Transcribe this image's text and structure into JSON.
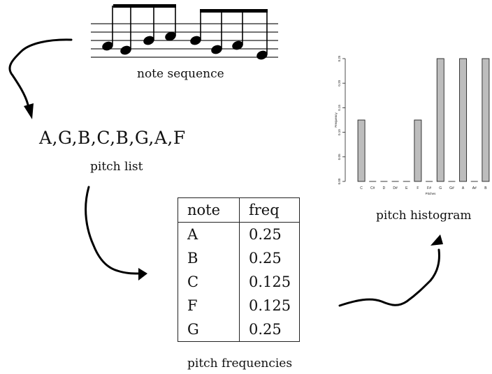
{
  "diagram": {
    "note_sequence_label": "note sequence",
    "pitch_list": "A,G,B,C,B,G,A,F",
    "pitch_list_label": "pitch list",
    "pitch_frequencies_label": "pitch frequencies",
    "pitch_histogram_label": "pitch histogram",
    "table": {
      "headers": [
        "note",
        "freq"
      ],
      "rows": [
        {
          "note": "A",
          "freq": "0.25"
        },
        {
          "note": "B",
          "freq": "0.25"
        },
        {
          "note": "C",
          "freq": "0.125"
        },
        {
          "note": "F",
          "freq": "0.125"
        },
        {
          "note": "G",
          "freq": "0.25"
        }
      ]
    }
  },
  "chart_data": {
    "type": "bar",
    "categories": [
      "C",
      "C#",
      "D",
      "D#",
      "E",
      "F",
      "F#",
      "G",
      "G#",
      "A",
      "A#",
      "B"
    ],
    "values": [
      0.125,
      0,
      0,
      0,
      0,
      0.125,
      0,
      0.25,
      0,
      0.25,
      0,
      0.25
    ],
    "xlabel": "Pitches",
    "ylabel": "Frequency",
    "ylim": [
      0,
      0.25
    ],
    "yticks": [
      "0.00",
      "0.05",
      "0.10",
      "0.15",
      "0.20",
      "0.25"
    ],
    "bar_color": "#bdbdbd",
    "grid": false
  }
}
